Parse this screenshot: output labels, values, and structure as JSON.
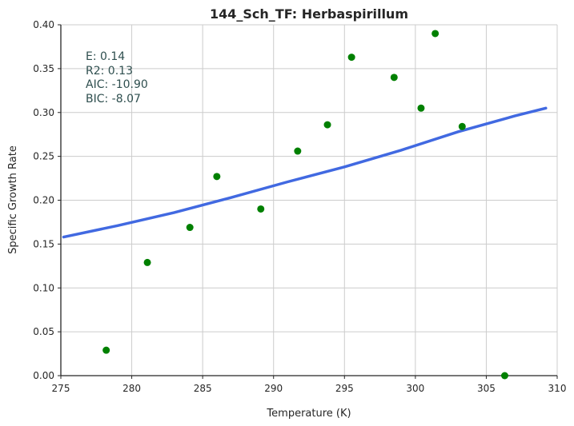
{
  "chart_data": {
    "type": "scatter",
    "title": "144_Sch_TF: Herbaspirillum",
    "xlabel": "Temperature (K)",
    "ylabel": "Specific Growth Rate",
    "xlim": [
      275,
      310
    ],
    "ylim": [
      0.0,
      0.4
    ],
    "xticks": [
      "275",
      "280",
      "285",
      "290",
      "295",
      "300",
      "305",
      "310"
    ],
    "yticks": [
      "0.00",
      "0.05",
      "0.10",
      "0.15",
      "0.20",
      "0.25",
      "0.30",
      "0.35",
      "0.40"
    ],
    "grid": true,
    "annotation_lines": [
      "E:  0.14",
      "R2:  0.13",
      "AIC: -10.90",
      "BIC: -8.07"
    ],
    "series": [
      {
        "type": "scatter",
        "color": "#008000",
        "points": [
          [
            278.2,
            0.029
          ],
          [
            281.1,
            0.129
          ],
          [
            284.1,
            0.169
          ],
          [
            286.0,
            0.227
          ],
          [
            289.1,
            0.19
          ],
          [
            291.7,
            0.256
          ],
          [
            293.8,
            0.286
          ],
          [
            295.5,
            0.363
          ],
          [
            298.5,
            0.34
          ],
          [
            300.4,
            0.305
          ],
          [
            301.4,
            0.39
          ],
          [
            303.3,
            0.284
          ],
          [
            306.3,
            0.0
          ]
        ]
      },
      {
        "type": "line",
        "color": "#4169e1",
        "points": [
          [
            275.2,
            0.158
          ],
          [
            279.0,
            0.171
          ],
          [
            283.0,
            0.186
          ],
          [
            287.0,
            0.203
          ],
          [
            291.0,
            0.221
          ],
          [
            295.0,
            0.238
          ],
          [
            299.0,
            0.257
          ],
          [
            303.0,
            0.278
          ],
          [
            307.0,
            0.296
          ],
          [
            309.2,
            0.305
          ]
        ]
      }
    ]
  }
}
